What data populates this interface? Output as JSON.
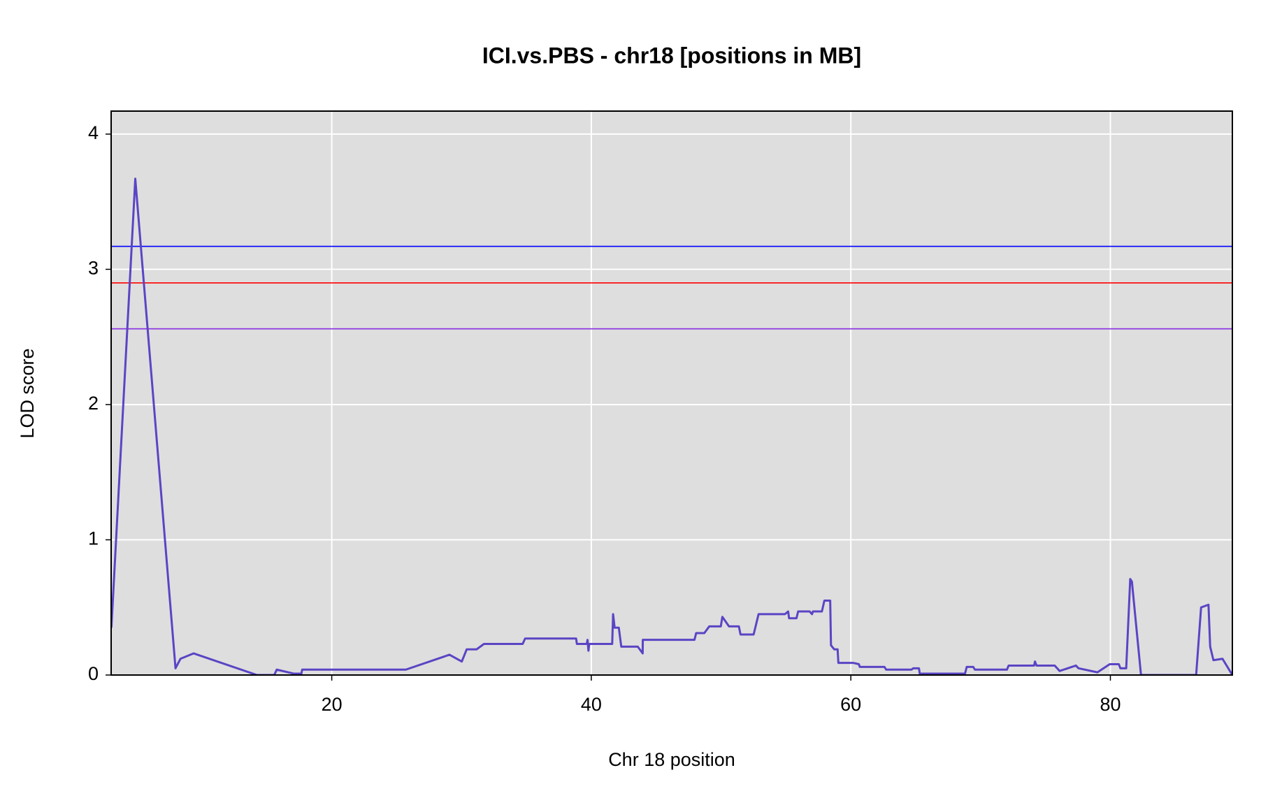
{
  "chart_data": {
    "type": "line",
    "title": "ICI.vs.PBS - chr18 [positions in MB]",
    "x_label": "Chr 18 position",
    "y_label": "LOD score",
    "xlim": [
      3.0,
      89.4
    ],
    "ylim": [
      0,
      4.17
    ],
    "xticks": [
      20,
      40,
      60,
      80
    ],
    "yticks": [
      0,
      1,
      2,
      3,
      4
    ],
    "grid": true,
    "background": "#dedede",
    "hlines": [
      {
        "value": 3.17,
        "color": "#0000ff"
      },
      {
        "value": 2.9,
        "color": "#ff0000"
      },
      {
        "value": 2.56,
        "color": "#8a2be2"
      }
    ],
    "x": [
      3.02,
      4.86,
      7.96,
      8.34,
      9.36,
      14.24,
      15.57,
      15.76,
      17.09,
      17.66,
      17.72,
      25.71,
      29.07,
      30.02,
      30.4,
      31.16,
      31.73,
      34.71,
      34.9,
      38.83,
      38.89,
      39.65,
      39.71,
      39.78,
      39.84,
      41.61,
      41.68,
      41.8,
      42.12,
      42.31,
      43.58,
      43.96,
      43.97,
      47.95,
      48.08,
      48.71,
      49.09,
      49.98,
      50.1,
      50.61,
      51.37,
      51.5,
      52.51,
      52.89,
      54.92,
      55.17,
      55.24,
      55.81,
      55.94,
      56.82,
      57.01,
      57.08,
      57.77,
      57.96,
      58.41,
      58.47,
      58.72,
      58.98,
      59.04,
      60.12,
      60.18,
      60.62,
      60.69,
      62.59,
      62.72,
      64.68,
      64.81,
      65.25,
      65.31,
      68.8,
      68.93,
      69.43,
      69.56,
      72.03,
      72.16,
      74.12,
      74.19,
      74.31,
      75.71,
      76.09,
      77.35,
      77.54,
      79.0,
      79.95,
      80.65,
      80.77,
      81.22,
      81.53,
      81.66,
      82.36,
      86.61,
      86.99,
      87.56,
      87.69,
      87.94,
      88.64,
      89.4
    ],
    "series": [
      {
        "color": "#5b44c4",
        "values": [
          0.35,
          3.67,
          0.05,
          0.12,
          0.16,
          0,
          0,
          0.04,
          0.01,
          0.01,
          0.04,
          0.04,
          0.15,
          0.1,
          0.19,
          0.19,
          0.23,
          0.23,
          0.27,
          0.27,
          0.23,
          0.23,
          0.26,
          0.18,
          0.23,
          0.23,
          0.45,
          0.35,
          0.35,
          0.21,
          0.21,
          0.16,
          0.26,
          0.26,
          0.31,
          0.31,
          0.36,
          0.36,
          0.43,
          0.36,
          0.36,
          0.3,
          0.3,
          0.45,
          0.45,
          0.47,
          0.42,
          0.42,
          0.47,
          0.47,
          0.45,
          0.47,
          0.47,
          0.55,
          0.55,
          0.22,
          0.19,
          0.19,
          0.09,
          0.09,
          0.09,
          0.08,
          0.06,
          0.06,
          0.04,
          0.04,
          0.05,
          0.05,
          0.01,
          0.01,
          0.06,
          0.06,
          0.04,
          0.04,
          0.07,
          0.07,
          0.1,
          0.07,
          0.07,
          0.03,
          0.07,
          0.05,
          0.02,
          0.08,
          0.08,
          0.05,
          0.05,
          0.71,
          0.69,
          0,
          0,
          0.5,
          0.52,
          0.21,
          0.11,
          0.12,
          0
        ]
      }
    ]
  }
}
